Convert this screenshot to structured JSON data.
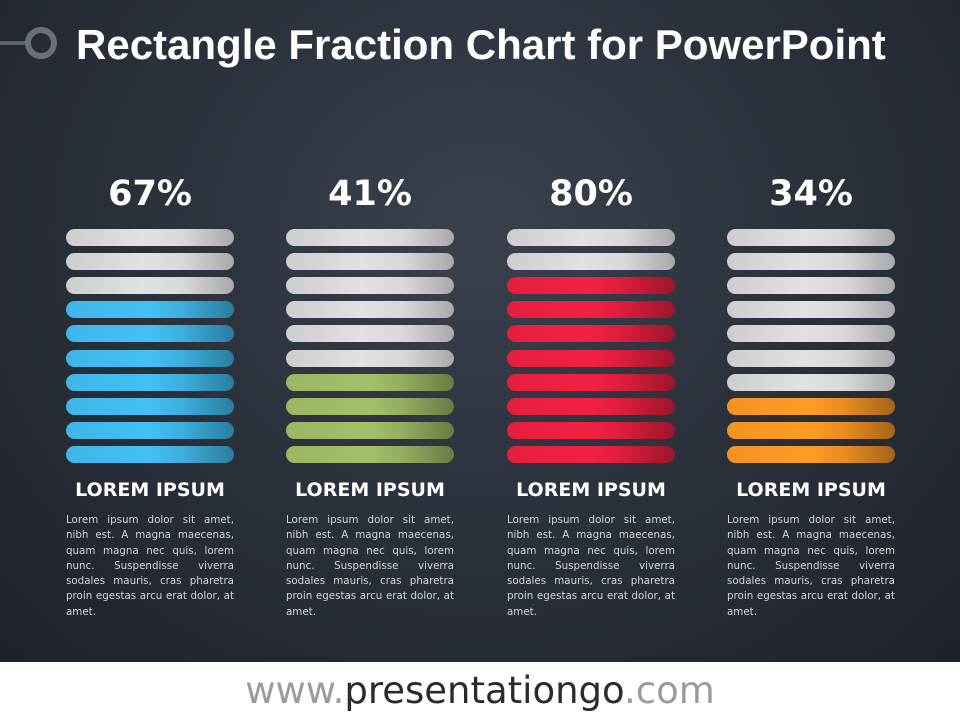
{
  "title": "Rectangle Fraction Chart for PowerPoint",
  "chart_data": {
    "type": "bar",
    "segments_per_bar": 10,
    "series": [
      {
        "label": "67%",
        "value": 67,
        "filled_segments": 7,
        "color": "#3fb6e8",
        "heading": "LOREM IPSUM",
        "body": "Lorem ipsum dolor sit amet, nibh est. A magna maecenas, quam magna nec quis, lorem nunc. Suspendisse viverra sodales mauris, cras pharetra proin egestas arcu erat dolor, at amet."
      },
      {
        "label": "41%",
        "value": 41,
        "filled_segments": 4,
        "color": "#9bb563",
        "heading": "LOREM IPSUM",
        "body": "Lorem ipsum dolor sit amet, nibh est. A magna maecenas, quam magna nec quis, lorem nunc. Suspendisse viverra sodales mauris, cras pharetra proin egestas arcu erat dolor, at amet."
      },
      {
        "label": "80%",
        "value": 80,
        "filled_segments": 8,
        "color": "#e51f3f",
        "heading": "LOREM IPSUM",
        "body": "Lorem ipsum dolor sit amet, nibh est. A magna maecenas, quam magna nec quis, lorem nunc. Suspendisse viverra sodales mauris, cras pharetra proin egestas arcu erat dolor, at amet."
      },
      {
        "label": "34%",
        "value": 34,
        "filled_segments": 3,
        "color": "#f39323",
        "heading": "LOREM IPSUM",
        "body": "Lorem ipsum dolor sit amet, nibh est. A magna maecenas, quam magna nec quis, lorem nunc. Suspendisse viverra sodales mauris, cras pharetra proin egestas arcu erat dolor, at amet."
      }
    ]
  },
  "colors": {
    "empty_segment": "#d9d9d9",
    "background": "#2b313b"
  },
  "footer": {
    "prefix": "www.",
    "main": "presentationgo",
    "suffix": ".com"
  }
}
